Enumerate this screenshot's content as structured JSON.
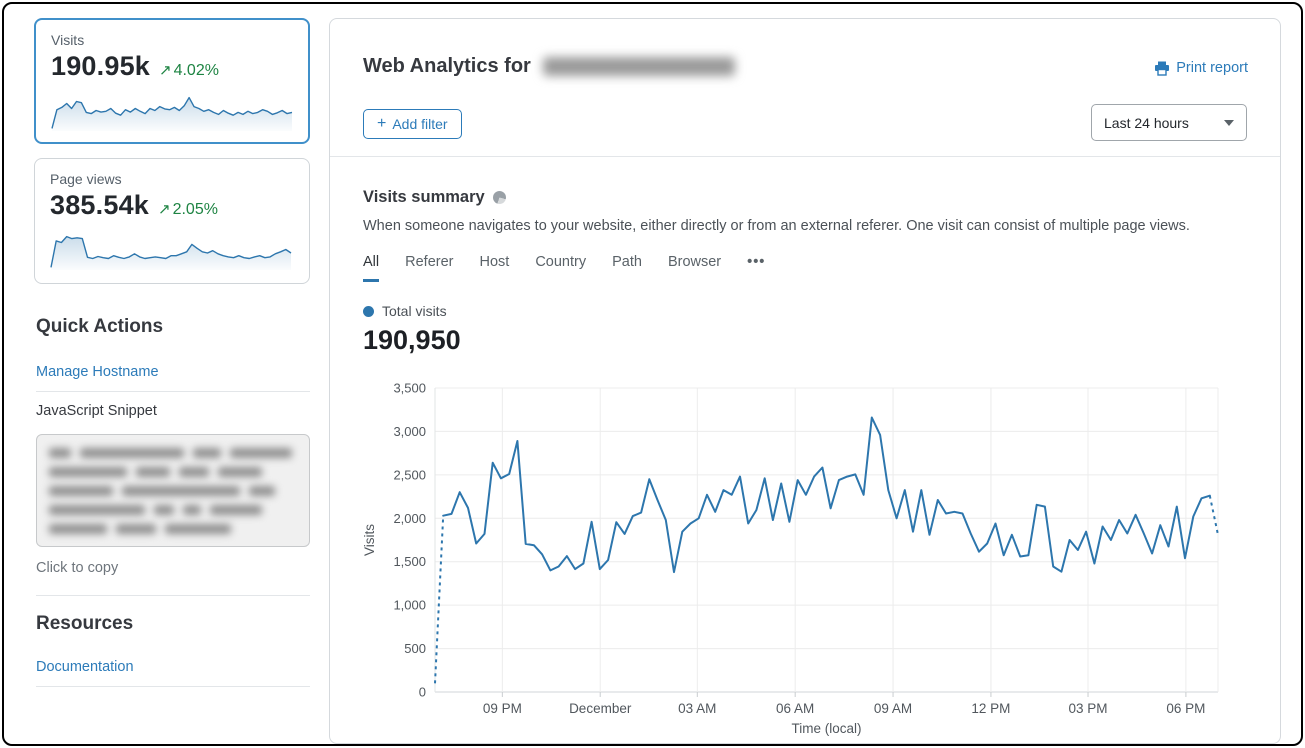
{
  "colors": {
    "accent_blue": "#2d76ad",
    "link_blue": "#2c7bb9",
    "positive_green": "#1e8443",
    "selected_card_border": "#4090ca"
  },
  "sidebar": {
    "metric_cards": [
      {
        "label": "Visits",
        "value": "190.95k",
        "trend_arrow": "↗",
        "delta": "4.02%",
        "selected": true,
        "spark": [
          4,
          52,
          58,
          68,
          55,
          73,
          70,
          45,
          42,
          50,
          46,
          48,
          55,
          43,
          38,
          52,
          46,
          55,
          48,
          42,
          55,
          50,
          60,
          54,
          52,
          58,
          50,
          62,
          83,
          60,
          55,
          48,
          52,
          45,
          40,
          50,
          43,
          38,
          45,
          40,
          48,
          42,
          45,
          52,
          48,
          40,
          44,
          50,
          42,
          45
        ]
      },
      {
        "label": "Page views",
        "value": "385.54k",
        "trend_arrow": "↗",
        "delta": "2.05%",
        "selected": false,
        "spark": [
          4,
          72,
          68,
          83,
          78,
          80,
          78,
          30,
          27,
          32,
          29,
          27,
          34,
          30,
          27,
          31,
          39,
          31,
          27,
          29,
          31,
          29,
          27,
          34,
          34,
          39,
          44,
          63,
          53,
          44,
          41,
          47,
          39,
          34,
          31,
          29,
          34,
          29,
          27,
          31,
          34,
          29,
          31,
          39,
          44,
          50,
          41
        ]
      }
    ],
    "quick_actions_title": "Quick Actions",
    "manage_hostname_label": "Manage Hostname",
    "snippet_label": "JavaScript Snippet",
    "copy_hint": "Click to copy",
    "resources_title": "Resources",
    "documentation_label": "Documentation"
  },
  "header": {
    "title": "Web Analytics for",
    "print_label": "Print report",
    "add_filter_plus": "+",
    "add_filter_label": "Add filter",
    "time_range_value": "Last 24 hours"
  },
  "summary": {
    "title": "Visits summary",
    "description": "When someone navigates to your website, either directly or from an external referer. One visit can consist of multiple page views.",
    "tabs": [
      "All",
      "Referer",
      "Host",
      "Country",
      "Path",
      "Browser"
    ],
    "active_tab": "All",
    "overflow_tab": "•••",
    "legend_label": "Total visits",
    "total_value": "190,950"
  },
  "chart_data": {
    "type": "line",
    "title": "Total visits",
    "xlabel": "Time (local)",
    "ylabel": "Visits",
    "ylim": [
      0,
      3500
    ],
    "yticks": [
      0,
      500,
      1000,
      1500,
      2000,
      2500,
      3000,
      3500
    ],
    "xticks": [
      {
        "label": "09 PM",
        "pos": 0.086
      },
      {
        "label": "December",
        "pos": 0.211
      },
      {
        "label": "03 AM",
        "pos": 0.335
      },
      {
        "label": "06 AM",
        "pos": 0.46
      },
      {
        "label": "09 AM",
        "pos": 0.585
      },
      {
        "label": "12 PM",
        "pos": 0.71
      },
      {
        "label": "03 PM",
        "pos": 0.834
      },
      {
        "label": "06 PM",
        "pos": 0.959
      }
    ],
    "grid": true,
    "series": [
      {
        "name": "Total visits",
        "color": "#2d76ad",
        "dashed_head": true,
        "dashed_tail": true,
        "values": [
          100,
          2030,
          2050,
          2300,
          2120,
          1710,
          1820,
          2640,
          2460,
          2510,
          2890,
          1705,
          1690,
          1585,
          1400,
          1445,
          1565,
          1415,
          1480,
          1960,
          1415,
          1520,
          1955,
          1820,
          2025,
          2065,
          2450,
          2210,
          1980,
          1380,
          1845,
          1940,
          2000,
          2270,
          2075,
          2325,
          2270,
          2480,
          1940,
          2095,
          2460,
          1980,
          2400,
          1960,
          2440,
          2270,
          2480,
          2585,
          2115,
          2440,
          2480,
          2505,
          2270,
          3160,
          2960,
          2325,
          2000,
          2325,
          1845,
          2325,
          1810,
          2210,
          2055,
          2075,
          2055,
          1825,
          1615,
          1710,
          1940,
          1575,
          1810,
          1560,
          1575,
          2155,
          2135,
          1445,
          1385,
          1750,
          1635,
          1845,
          1480,
          1905,
          1750,
          1980,
          1825,
          2040,
          1825,
          1595,
          1920,
          1675,
          2135,
          1540,
          2020,
          2230,
          2260,
          1810
        ]
      }
    ]
  }
}
